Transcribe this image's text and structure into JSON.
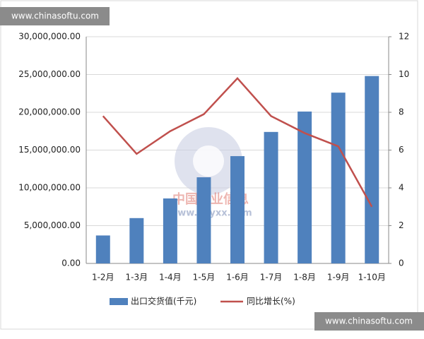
{
  "chart_data": {
    "type": "bar_line",
    "categories": [
      "1-2月",
      "1-3月",
      "1-4月",
      "1-5月",
      "1-6月",
      "1-7月",
      "1-8月",
      "1-9月",
      "1-10月"
    ],
    "series": [
      {
        "name": "出口交货值(千元)",
        "type": "bar",
        "color": "#4f81bd",
        "values": [
          3700000,
          6000000,
          8600000,
          11400000,
          14200000,
          17400000,
          20100000,
          22600000,
          24800000
        ]
      },
      {
        "name": "同比增长(%)",
        "type": "line",
        "axis": "y2",
        "color": "#c0504d",
        "values": [
          7.8,
          5.8,
          7.0,
          7.9,
          9.8,
          7.8,
          6.9,
          6.2,
          3.0
        ]
      }
    ],
    "ylim": [
      0,
      30000000
    ],
    "yticks": [
      {
        "value": 0,
        "label": "0.00"
      },
      {
        "value": 5000000,
        "label": "5,000,000.00"
      },
      {
        "value": 10000000,
        "label": "10,000,000.00"
      },
      {
        "value": 15000000,
        "label": "15,000,000.00"
      },
      {
        "value": 20000000,
        "label": "20,000,000.00"
      },
      {
        "value": 25000000,
        "label": "25,000,000.00"
      },
      {
        "value": 30000000,
        "label": "30,000,000.00"
      }
    ],
    "y2lim": [
      0,
      12
    ],
    "y2ticks": [
      0,
      2,
      4,
      6,
      8,
      10,
      12
    ],
    "grid": true,
    "legend": "bottom"
  },
  "watermarks": {
    "top_badge": "www.chinasoftu.com",
    "bottom_badge": "www.chinasoftu.com",
    "center_title": "中国产业信息",
    "center_url": "www.chyxx.com"
  }
}
